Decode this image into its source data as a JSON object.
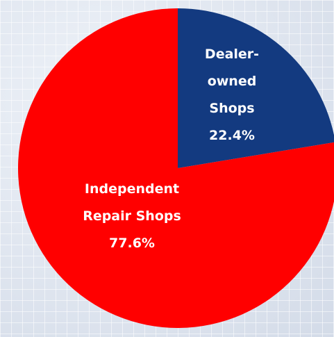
{
  "chart_data": {
    "type": "pie",
    "categories": [
      "Dealer-owned Shops",
      "Independent Repair Shops"
    ],
    "values": [
      22.4,
      77.6
    ],
    "value_labels": [
      "22.4%",
      "77.6%"
    ],
    "colors": [
      "#133a80",
      "#ff0000"
    ]
  }
}
